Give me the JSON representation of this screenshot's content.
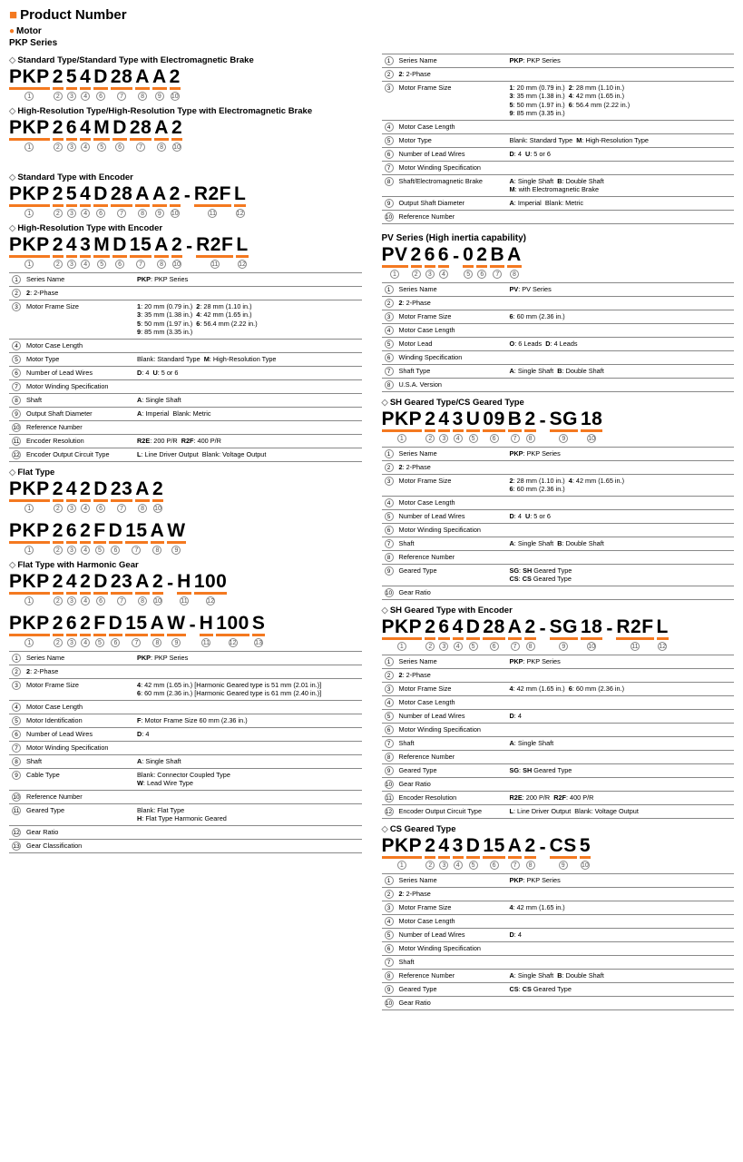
{
  "header": {
    "title": "Product Number",
    "motor": "Motor",
    "pkp": "PKP Series"
  },
  "colors": {
    "accent": "#f47920",
    "rule": "#888888",
    "text": "#000000",
    "bg": "#ffffff"
  },
  "left": {
    "h1": "Standard Type/Standard Type with Electromagnetic Brake",
    "pn1": [
      [
        "PKP",
        "1"
      ],
      [
        "2",
        "2"
      ],
      [
        "5",
        "3"
      ],
      [
        "4",
        "4"
      ],
      [
        "D",
        "6"
      ],
      [
        "28",
        "7"
      ],
      [
        "A",
        "8"
      ],
      [
        "A",
        "9"
      ],
      [
        "2",
        "10"
      ]
    ],
    "h2": "High-Resolution Type/High-Resolution Type with Electromagnetic Brake",
    "pn2": [
      [
        "PKP",
        "1"
      ],
      [
        "2",
        "2"
      ],
      [
        "6",
        "3"
      ],
      [
        "4",
        "4"
      ],
      [
        "M",
        "5"
      ],
      [
        "D",
        "6"
      ],
      [
        "28",
        "7"
      ],
      [
        "A",
        "8"
      ],
      [
        "2",
        "10"
      ]
    ],
    "h3": "Standard Type with Encoder",
    "pn3": [
      [
        "PKP",
        "1"
      ],
      [
        "2",
        "2"
      ],
      [
        "5",
        "3"
      ],
      [
        "4",
        "4"
      ],
      [
        "D",
        "6"
      ],
      [
        "28",
        "7"
      ],
      [
        "A",
        "8"
      ],
      [
        "A",
        "9"
      ],
      [
        "2",
        "10"
      ],
      [
        "-",
        ""
      ],
      [
        "R2F",
        "11"
      ],
      [
        "L",
        "12"
      ]
    ],
    "h4": "High-Resolution Type with Encoder",
    "pn4": [
      [
        "PKP",
        "1"
      ],
      [
        "2",
        "2"
      ],
      [
        "4",
        "3"
      ],
      [
        "3",
        "4"
      ],
      [
        "M",
        "5"
      ],
      [
        "D",
        "6"
      ],
      [
        "15",
        "7"
      ],
      [
        "A",
        "8"
      ],
      [
        "2",
        "10"
      ],
      [
        "-",
        ""
      ],
      [
        "R2F",
        "11"
      ],
      [
        "L",
        "12"
      ]
    ],
    "tbl1": [
      [
        "1",
        "Series Name",
        "<b>PKP</b>: PKP Series"
      ],
      [
        "2",
        "<b>2</b>: 2-Phase",
        ""
      ],
      [
        "3",
        "Motor Frame Size",
        "<b>1</b>: 20 mm (0.79 in.)&nbsp;&nbsp;<b>2</b>: 28 mm (1.10 in.)<br><b>3</b>: 35 mm (1.38 in.)&nbsp;&nbsp;<b>4</b>: 42 mm (1.65 in.)<br><b>5</b>: 50 mm (1.97 in.)&nbsp;&nbsp;<b>6</b>: 56.4 mm (2.22 in.)<br><b>9</b>: 85 mm (3.35 in.)"
      ],
      [
        "4",
        "Motor Case Length",
        ""
      ],
      [
        "5",
        "Motor Type",
        "Blank: Standard Type&nbsp;&nbsp;<b>M</b>: High-Resolution Type"
      ],
      [
        "6",
        "Number of Lead Wires",
        "<b>D</b>: 4&nbsp;&nbsp;<b>U</b>: 5 or 6"
      ],
      [
        "7",
        "Motor Winding Specification",
        ""
      ],
      [
        "8",
        "Shaft",
        "<b>A</b>: Single Shaft"
      ],
      [
        "9",
        "Output Shaft Diameter",
        "<b>A</b>: Imperial&nbsp;&nbsp;Blank: Metric"
      ],
      [
        "10",
        "Reference Number",
        ""
      ],
      [
        "11",
        "Encoder Resolution",
        "<b>R2E</b>: 200 P/R&nbsp;&nbsp;<b>R2F</b>: 400 P/R"
      ],
      [
        "12",
        "Encoder Output Circuit Type",
        "<b>L</b>: Line Driver Output&nbsp;&nbsp;Blank: Voltage Output"
      ]
    ],
    "h5": "Flat Type",
    "pn5": [
      [
        "PKP",
        "1"
      ],
      [
        "2",
        "2"
      ],
      [
        "4",
        "3"
      ],
      [
        "2",
        "4"
      ],
      [
        "D",
        "6"
      ],
      [
        "23",
        "7"
      ],
      [
        "A",
        "8"
      ],
      [
        "2",
        "10"
      ]
    ],
    "pn6": [
      [
        "PKP",
        "1"
      ],
      [
        "2",
        "2"
      ],
      [
        "6",
        "3"
      ],
      [
        "2",
        "4"
      ],
      [
        "F",
        "5"
      ],
      [
        "D",
        "6"
      ],
      [
        "15",
        "7"
      ],
      [
        "A",
        "8"
      ],
      [
        "W",
        "9"
      ]
    ],
    "h6": "Flat Type with Harmonic Gear",
    "pn7": [
      [
        "PKP",
        "1"
      ],
      [
        "2",
        "2"
      ],
      [
        "4",
        "3"
      ],
      [
        "2",
        "4"
      ],
      [
        "D",
        "6"
      ],
      [
        "23",
        "7"
      ],
      [
        "A",
        "8"
      ],
      [
        "2",
        "10"
      ],
      [
        "-",
        ""
      ],
      [
        "H",
        "11"
      ],
      [
        "100",
        "12"
      ]
    ],
    "pn8": [
      [
        "PKP",
        "1"
      ],
      [
        "2",
        "2"
      ],
      [
        "6",
        "3"
      ],
      [
        "2",
        "4"
      ],
      [
        "F",
        "5"
      ],
      [
        "D",
        "6"
      ],
      [
        "15",
        "7"
      ],
      [
        "A",
        "8"
      ],
      [
        "W",
        "9"
      ],
      [
        "-",
        ""
      ],
      [
        "H",
        "11"
      ],
      [
        "100",
        "12"
      ],
      [
        "S",
        "13"
      ]
    ],
    "tbl2": [
      [
        "1",
        "Series Name",
        "<b>PKP</b>: PKP Series"
      ],
      [
        "2",
        "<b>2</b>: 2-Phase",
        ""
      ],
      [
        "3",
        "Motor Frame Size",
        "<b>4</b>: 42 mm (1.65 in.) [Harmonic Geared type is 51 mm (2.01 in.)]<br><b>6</b>: 60 mm (2.36 in.) [Harmonic Geared type is 61 mm (2.40 in.)]"
      ],
      [
        "4",
        "Motor Case Length",
        ""
      ],
      [
        "5",
        "Motor Identification",
        "<b>F</b>: Motor Frame Size 60 mm (2.36 in.)"
      ],
      [
        "6",
        "Number of Lead Wires",
        "<b>D</b>: 4"
      ],
      [
        "7",
        "Motor Winding Specification",
        ""
      ],
      [
        "8",
        "Shaft",
        "<b>A</b>: Single Shaft"
      ],
      [
        "9",
        "Cable Type",
        "Blank: Connector Coupled Type<br><b>W</b>: Lead Wire Type"
      ],
      [
        "10",
        "Reference Number",
        ""
      ],
      [
        "11",
        "Geared Type",
        "Blank: Flat Type<br><b>H</b>: Flat Type Harmonic Geared"
      ],
      [
        "12",
        "Gear Ratio",
        ""
      ],
      [
        "13",
        "Gear Classification",
        ""
      ]
    ]
  },
  "right": {
    "tbl0": [
      [
        "1",
        "Series Name",
        "<b>PKP</b>: PKP Series"
      ],
      [
        "2",
        "<b>2</b>: 2-Phase",
        ""
      ],
      [
        "3",
        "Motor Frame Size",
        "<b>1</b>: 20 mm (0.79 in.)&nbsp;&nbsp;<b>2</b>: 28 mm (1.10 in.)<br><b>3</b>: 35 mm (1.38 in.)&nbsp;&nbsp;<b>4</b>: 42 mm (1.65 in.)<br><b>5</b>: 50 mm (1.97 in.)&nbsp;&nbsp;<b>6</b>: 56.4 mm (2.22 in.)<br><b>9</b>: 85 mm (3.35 in.)"
      ],
      [
        "4",
        "Motor Case Length",
        ""
      ],
      [
        "5",
        "Motor Type",
        "Blank: Standard Type&nbsp;&nbsp;<b>M</b>: High-Resolution Type"
      ],
      [
        "6",
        "Number of Lead Wires",
        "<b>D</b>: 4&nbsp;&nbsp;<b>U</b>: 5 or 6"
      ],
      [
        "7",
        "Motor Winding Specification",
        ""
      ],
      [
        "8",
        "Shaft/Electromagnetic Brake",
        "<b>A</b>: Single Shaft&nbsp;&nbsp;<b>B</b>: Double Shaft<br><b>M</b>: with Electromagnetic Brake"
      ],
      [
        "9",
        "Output Shaft Diameter",
        "<b>A</b>: Imperial&nbsp;&nbsp;Blank: Metric"
      ],
      [
        "10",
        "Reference Number",
        ""
      ]
    ],
    "h1": "PV Series (High inertia capability)",
    "pn1": [
      [
        "PV",
        "1"
      ],
      [
        "2",
        "2"
      ],
      [
        "6",
        "3"
      ],
      [
        "6",
        "4"
      ],
      [
        "-",
        ""
      ],
      [
        "0",
        "5"
      ],
      [
        "2",
        "6"
      ],
      [
        "B",
        "7"
      ],
      [
        "A",
        "8"
      ]
    ],
    "tbl1": [
      [
        "1",
        "Series Name",
        "<b>PV</b>: PV Series"
      ],
      [
        "2",
        "<b>2</b>: 2-Phase",
        ""
      ],
      [
        "3",
        "Motor Frame Size",
        "<b>6</b>: 60 mm (2.36 in.)"
      ],
      [
        "4",
        "Motor Case Length",
        ""
      ],
      [
        "5",
        "Motor Lead",
        "<b>O</b>: 6 Leads&nbsp;&nbsp;<b>D</b>: 4 Leads"
      ],
      [
        "6",
        "Winding Specification",
        ""
      ],
      [
        "7",
        "Shaft Type",
        "<b>A</b>: Single Shaft&nbsp;&nbsp;<b>B</b>: Double Shaft"
      ],
      [
        "8",
        "U.S.A. Version",
        ""
      ]
    ],
    "h2": "SH Geared Type/CS Geared Type",
    "pn2": [
      [
        "PKP",
        "1"
      ],
      [
        "2",
        "2"
      ],
      [
        "4",
        "3"
      ],
      [
        "3",
        "4"
      ],
      [
        "U",
        "5"
      ],
      [
        "09",
        "6"
      ],
      [
        "B",
        "7"
      ],
      [
        "2",
        "8"
      ],
      [
        "-",
        ""
      ],
      [
        "SG",
        "9"
      ],
      [
        "18",
        "10"
      ]
    ],
    "tbl2": [
      [
        "1",
        "Series Name",
        "<b>PKP</b>: PKP Series"
      ],
      [
        "2",
        "<b>2</b>: 2-Phase",
        ""
      ],
      [
        "3",
        "Motor Frame Size",
        "<b>2</b>: 28 mm (1.10 in.)&nbsp;&nbsp;<b>4</b>: 42 mm (1.65 in.)<br><b>6</b>: 60 mm (2.36 in.)"
      ],
      [
        "4",
        "Motor Case Length",
        ""
      ],
      [
        "5",
        "Number of Lead Wires",
        "<b>D</b>: 4&nbsp;&nbsp;<b>U</b>: 5 or 6"
      ],
      [
        "6",
        "Motor Winding Specification",
        ""
      ],
      [
        "7",
        "Shaft",
        "<b>A</b>: Single Shaft&nbsp;&nbsp;<b>B</b>: Double Shaft"
      ],
      [
        "8",
        "Reference Number",
        ""
      ],
      [
        "9",
        "Geared Type",
        "<b>SG</b>: <b>SH</b> Geared Type<br><b>CS</b>: <b>CS</b> Geared Type"
      ],
      [
        "10",
        "Gear Ratio",
        ""
      ]
    ],
    "h3": "SH Geared Type with Encoder",
    "pn3": [
      [
        "PKP",
        "1"
      ],
      [
        "2",
        "2"
      ],
      [
        "6",
        "3"
      ],
      [
        "4",
        "4"
      ],
      [
        "D",
        "5"
      ],
      [
        "28",
        "6"
      ],
      [
        "A",
        "7"
      ],
      [
        "2",
        "8"
      ],
      [
        "-",
        ""
      ],
      [
        "SG",
        "9"
      ],
      [
        "18",
        "10"
      ],
      [
        "-",
        ""
      ],
      [
        "R2F",
        "11"
      ],
      [
        "L",
        "12"
      ]
    ],
    "tbl3": [
      [
        "1",
        "Series Name",
        "<b>PKP</b>: PKP Series"
      ],
      [
        "2",
        "<b>2</b>: 2-Phase",
        ""
      ],
      [
        "3",
        "Motor Frame Size",
        "<b>4</b>: 42 mm (1.65 in.)&nbsp;&nbsp;<b>6</b>: 60 mm (2.36 in.)"
      ],
      [
        "4",
        "Motor Case Length",
        ""
      ],
      [
        "5",
        "Number of Lead Wires",
        "<b>D</b>: 4"
      ],
      [
        "6",
        "Motor Winding Specification",
        ""
      ],
      [
        "7",
        "Shaft",
        "<b>A</b>: Single Shaft"
      ],
      [
        "8",
        "Reference Number",
        ""
      ],
      [
        "9",
        "Geared Type",
        "<b>SG</b>: <b>SH</b> Geared Type"
      ],
      [
        "10",
        "Gear Ratio",
        ""
      ],
      [
        "11",
        "Encoder Resolution",
        "<b>R2E</b>: 200 P/R&nbsp;&nbsp;<b>R2F</b>: 400 P/R"
      ],
      [
        "12",
        "Encoder Output Circuit Type",
        "<b>L</b>: Line Driver Output&nbsp;&nbsp;Blank: Voltage Output"
      ]
    ],
    "h4": "CS Geared Type",
    "pn4": [
      [
        "PKP",
        "1"
      ],
      [
        "2",
        "2"
      ],
      [
        "4",
        "3"
      ],
      [
        "3",
        "4"
      ],
      [
        "D",
        "5"
      ],
      [
        "15",
        "6"
      ],
      [
        "A",
        "7"
      ],
      [
        "2",
        "8"
      ],
      [
        "-",
        ""
      ],
      [
        "CS",
        "9"
      ],
      [
        "5",
        "10"
      ]
    ],
    "tbl4": [
      [
        "1",
        "Series Name",
        "<b>PKP</b>: PKP Series"
      ],
      [
        "2",
        "<b>2</b>: 2-Phase",
        ""
      ],
      [
        "3",
        "Motor Frame Size",
        "<b>4</b>: 42 mm (1.65 in.)"
      ],
      [
        "4",
        "Motor Case Length",
        ""
      ],
      [
        "5",
        "Number of Lead Wires",
        "<b>D</b>: 4"
      ],
      [
        "6",
        "Motor Winding Specification",
        ""
      ],
      [
        "7",
        "Shaft",
        ""
      ],
      [
        "8",
        "Reference Number",
        "<b>A</b>: Single Shaft&nbsp;&nbsp;<b>B</b>: Double Shaft"
      ],
      [
        "9",
        "Geared Type",
        "<b>CS</b>: <b>CS</b> Geared Type"
      ],
      [
        "10",
        "Gear Ratio",
        ""
      ]
    ]
  }
}
